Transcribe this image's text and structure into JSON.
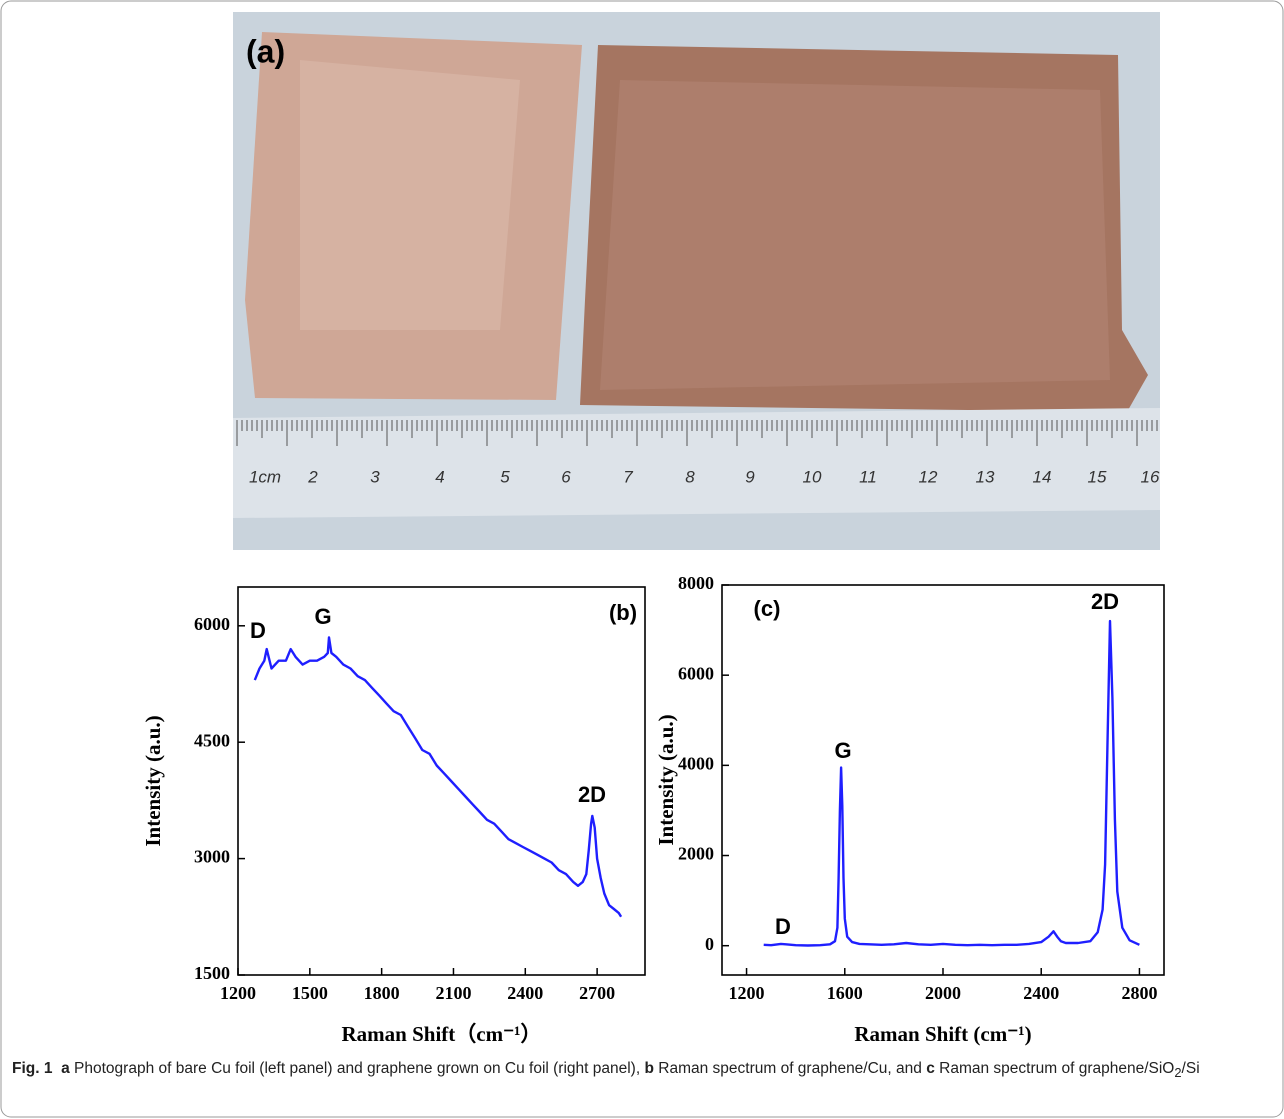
{
  "panel_a": {
    "label": "(a)",
    "ruler_labels": [
      "1cm",
      "2",
      "3",
      "4",
      "5",
      "6",
      "7",
      "8",
      "9",
      "10",
      "11",
      "12",
      "13",
      "14",
      "15",
      "16"
    ]
  },
  "chart_data": [
    {
      "type": "line",
      "color": "#1f1fff",
      "xlabel": "Raman Shift（cm⁻¹）",
      "ylabel": "Intensity (a.u.)",
      "annotations": [
        "D",
        "G",
        "2D",
        "(b)"
      ],
      "xlim": [
        1200,
        2900
      ],
      "ylim": [
        1500,
        6500
      ],
      "xticks": [
        1200,
        1500,
        1800,
        2100,
        2400,
        2700
      ],
      "yticks": [
        1500,
        3000,
        4500,
        6000
      ],
      "x": [
        1270,
        1290,
        1310,
        1320,
        1340,
        1370,
        1400,
        1420,
        1440,
        1470,
        1500,
        1530,
        1560,
        1575,
        1580,
        1590,
        1610,
        1640,
        1670,
        1700,
        1730,
        1760,
        1790,
        1820,
        1850,
        1880,
        1910,
        1940,
        1970,
        2000,
        2030,
        2060,
        2090,
        2120,
        2150,
        2180,
        2210,
        2240,
        2270,
        2300,
        2330,
        2360,
        2390,
        2420,
        2450,
        2480,
        2510,
        2540,
        2570,
        2600,
        2620,
        2640,
        2655,
        2665,
        2675,
        2680,
        2690,
        2700,
        2715,
        2730,
        2750,
        2770,
        2790,
        2800
      ],
      "values": [
        5300,
        5450,
        5550,
        5700,
        5450,
        5550,
        5550,
        5700,
        5600,
        5500,
        5550,
        5550,
        5600,
        5650,
        5850,
        5650,
        5600,
        5500,
        5450,
        5350,
        5300,
        5200,
        5100,
        5000,
        4900,
        4850,
        4700,
        4550,
        4400,
        4350,
        4200,
        4100,
        4000,
        3900,
        3800,
        3700,
        3600,
        3500,
        3450,
        3350,
        3250,
        3200,
        3150,
        3100,
        3050,
        3000,
        2950,
        2850,
        2800,
        2700,
        2650,
        2700,
        2800,
        3100,
        3450,
        3550,
        3400,
        3000,
        2750,
        2550,
        2400,
        2350,
        2300,
        2250
      ]
    },
    {
      "type": "line",
      "color": "#1f1fff",
      "xlabel": "Raman Shift (cm⁻¹)",
      "ylabel": "Intensity (a.u.)",
      "annotations": [
        "D",
        "G",
        "2D",
        "(c)"
      ],
      "xlim": [
        1100,
        2900
      ],
      "ylim": [
        -650,
        8000
      ],
      "xticks": [
        1200,
        1600,
        2000,
        2400,
        2800
      ],
      "yticks": [
        0,
        2000,
        4000,
        6000,
        8000
      ],
      "x": [
        1270,
        1300,
        1340,
        1360,
        1400,
        1450,
        1500,
        1540,
        1560,
        1570,
        1575,
        1580,
        1585,
        1590,
        1595,
        1600,
        1610,
        1630,
        1660,
        1700,
        1750,
        1800,
        1850,
        1900,
        1950,
        2000,
        2050,
        2100,
        2150,
        2200,
        2250,
        2300,
        2350,
        2400,
        2430,
        2450,
        2465,
        2480,
        2500,
        2550,
        2600,
        2630,
        2650,
        2660,
        2670,
        2680,
        2690,
        2700,
        2710,
        2730,
        2760,
        2800
      ],
      "values": [
        20,
        10,
        40,
        30,
        10,
        5,
        10,
        30,
        100,
        400,
        1500,
        3000,
        3950,
        3100,
        1500,
        600,
        200,
        80,
        40,
        30,
        20,
        30,
        60,
        30,
        20,
        40,
        20,
        10,
        20,
        10,
        20,
        20,
        40,
        80,
        200,
        320,
        200,
        100,
        60,
        60,
        100,
        300,
        800,
        1800,
        4500,
        7200,
        5500,
        2800,
        1200,
        400,
        120,
        20
      ]
    }
  ],
  "caption": {
    "label": "Fig. 1",
    "a_letter": "a",
    "a_text": "Photograph of bare Cu foil (left panel) and graphene grown on Cu foil (right panel),",
    "b_letter": "b",
    "b_text": "Raman spectrum of graphene/Cu, and",
    "c_letter": "c",
    "c_text": "Raman spectrum of graphene/SiO",
    "c_sub": "2",
    "c_end": "/Si"
  }
}
